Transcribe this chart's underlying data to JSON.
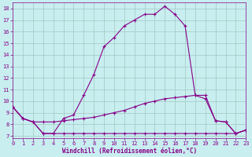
{
  "xlabel": "Windchill (Refroidissement éolien,°C)",
  "background_color": "#c8eef0",
  "grid_color": "#a0c8c0",
  "line_color": "#880088",
  "x": [
    0,
    1,
    2,
    3,
    4,
    5,
    6,
    7,
    8,
    9,
    10,
    11,
    12,
    13,
    14,
    15,
    16,
    17,
    18,
    19,
    20,
    21,
    22,
    23
  ],
  "y_upper": [
    9.5,
    8.5,
    8.2,
    7.2,
    7.2,
    8.5,
    8.8,
    10.5,
    12.3,
    14.7,
    15.5,
    16.5,
    17.0,
    17.5,
    17.5,
    18.2,
    17.5,
    16.5,
    10.5,
    10.2,
    8.3,
    8.2,
    7.2,
    7.5
  ],
  "y_mid": [
    9.5,
    8.5,
    8.2,
    8.2,
    8.2,
    8.3,
    8.4,
    8.5,
    8.6,
    8.8,
    9.0,
    9.2,
    9.5,
    9.8,
    10.0,
    10.2,
    10.3,
    10.4,
    10.5,
    10.5,
    8.3,
    8.2,
    7.2,
    7.5
  ],
  "y_lower": [
    9.5,
    8.5,
    8.2,
    7.2,
    7.2,
    7.2,
    7.2,
    7.2,
    7.2,
    7.2,
    7.2,
    7.2,
    7.2,
    7.2,
    7.2,
    7.2,
    7.2,
    7.2,
    7.2,
    7.2,
    7.2,
    7.2,
    7.2,
    7.5
  ],
  "ylim": [
    6.8,
    18.5
  ],
  "xlim": [
    0,
    23
  ],
  "yticks": [
    7,
    8,
    9,
    10,
    11,
    12,
    13,
    14,
    15,
    16,
    17,
    18
  ],
  "xticks": [
    0,
    1,
    2,
    3,
    4,
    5,
    6,
    7,
    8,
    9,
    10,
    11,
    12,
    13,
    14,
    15,
    16,
    17,
    18,
    19,
    20,
    21,
    22,
    23
  ],
  "marker": "+",
  "marker_size": 3.5,
  "line_width": 0.8,
  "tick_fontsize": 5,
  "xlabel_fontsize": 5.5
}
